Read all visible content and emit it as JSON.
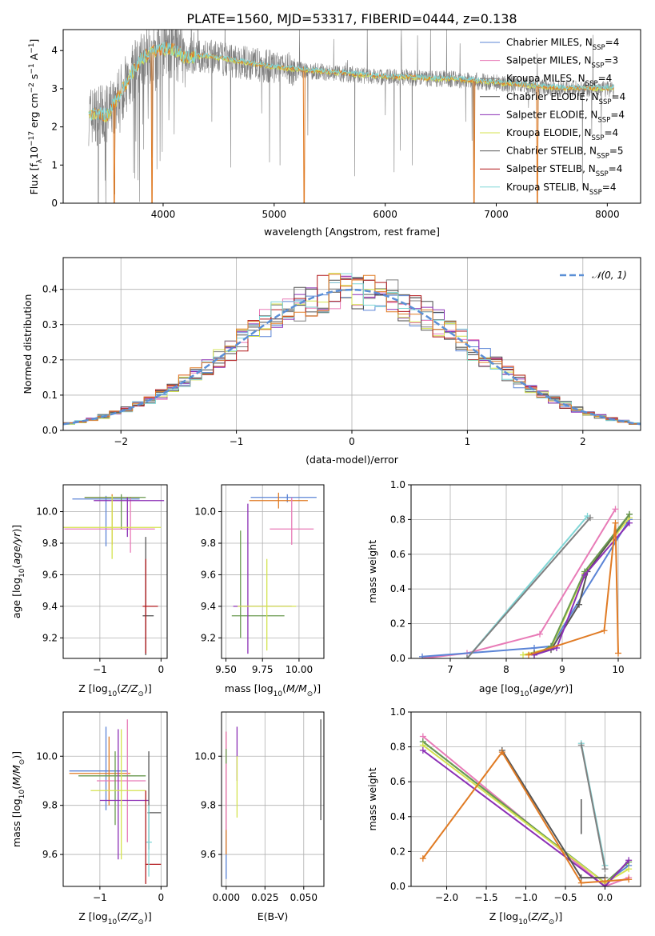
{
  "figure_title": "PLATE=1560, MJD=53317, FIBERID=0444, z=0.138",
  "colors": {
    "chabrier_miles": "#5b84d6",
    "salpeter_miles": "#e87bb7",
    "kroupa_miles": "#7f7f7f",
    "chabrier_elodie": "#4a4a4a",
    "salpeter_elodie": "#8b2fb5",
    "kroupa_elodie": "#d4e34f",
    "chabrier_stelib": "#555555",
    "salpeter_stelib": "#b2181b",
    "kroupa_stelib": "#7fd6d6",
    "orange": "#e07b24",
    "green": "#6a9a4f",
    "grid": "#b0b0b0"
  },
  "chart_data": [
    {
      "id": "spectrum",
      "type": "line",
      "title": "PLATE=1560, MJD=53317, FIBERID=0444, z=0.138",
      "xlabel": "wavelength [Angstrom, rest frame]",
      "ylabel": "Flux [f_λ 10^-17 erg cm^-2 s^-1 A^-1]",
      "xlim": [
        3100,
        8300
      ],
      "ylim": [
        0,
        4.55
      ],
      "xticks": [
        "4000",
        "5000",
        "6000",
        "7000",
        "8000"
      ],
      "yticks": [
        "0",
        "1",
        "2",
        "3",
        "4"
      ],
      "grid": false,
      "legend_position": "top-right",
      "legend": [
        "Chabrier MILES, N_SSP=4",
        "Salpeter MILES, N_SSP=3",
        "Kroupa MILES, N_SSP=4",
        "Chabrier ELODIE, N_SSP=4",
        "Salpeter ELODIE, N_SSP=4",
        "Kroupa ELODIE, N_SSP=4",
        "Chabrier STELIB, N_SSP=5",
        "Salpeter STELIB, N_SSP=4",
        "Kroupa STELIB, N_SSP=4"
      ],
      "model_continuum": {
        "x": [
          3300,
          3500,
          3700,
          3800,
          3900,
          4000,
          4100,
          4200,
          4400,
          4600,
          4800,
          5000,
          5200,
          5400,
          5600,
          5800,
          6000,
          6200,
          6400,
          6600,
          6800,
          7000,
          7200,
          7400,
          7600,
          7800,
          8000,
          8100
        ],
        "y": [
          2.3,
          2.3,
          3.3,
          3.75,
          3.95,
          4.05,
          4.0,
          3.8,
          3.85,
          3.75,
          3.65,
          3.55,
          3.5,
          3.45,
          3.4,
          3.35,
          3.3,
          3.3,
          3.25,
          3.25,
          3.2,
          3.15,
          3.1,
          3.05,
          3.0,
          3.0,
          3.0,
          3.0
        ]
      },
      "model_dropouts": [
        {
          "x": 3560,
          "y": 0
        },
        {
          "x": 3900,
          "y": 0
        },
        {
          "x": 5270,
          "y": 0
        },
        {
          "x": 6800,
          "y": 0
        },
        {
          "x": 7370,
          "y": 0
        }
      ]
    },
    {
      "id": "residuals",
      "type": "bar",
      "xlabel": "(data-model)/error",
      "ylabel": "Normed distribution",
      "xlim": [
        -2.5,
        2.5
      ],
      "ylim": [
        0,
        0.49
      ],
      "xticks": [
        "−2",
        "−1",
        "0",
        "1",
        "2"
      ],
      "yticks": [
        "0.0",
        "0.1",
        "0.2",
        "0.3",
        "0.4"
      ],
      "grid": true,
      "legend_position": "top-right",
      "legend": [
        "𝒩(0, 1)"
      ],
      "bin_width": 0.1,
      "bin_start": -2.5,
      "gaussian": {
        "mean": 0,
        "sigma": 1
      }
    },
    {
      "id": "age_vs_Z",
      "type": "scatter",
      "xlabel": "Z [log10(Z/Z⊙)]",
      "ylabel": "age [log10(age/yr)]",
      "xlim": [
        -1.6,
        0.1
      ],
      "ylim": [
        9.07,
        10.17
      ],
      "xticks": [
        "−1",
        "0"
      ],
      "yticks": [
        "9.2",
        "9.4",
        "9.6",
        "9.8",
        "10.0"
      ],
      "grid": true,
      "errorbars": [
        {
          "x": -0.9,
          "y": 10.08,
          "xerr": [
            0.55,
            0.55
          ],
          "yerr": [
            0.3,
            0.02
          ]
        },
        {
          "x": -0.8,
          "y": 10.09,
          "xerr": [
            0.45,
            0.45
          ],
          "yerr": [
            0.3,
            0.02
          ]
        },
        {
          "x": -0.5,
          "y": 9.89,
          "xerr": [
            1.08,
            0.4
          ],
          "yerr": [
            0.15,
            0.2
          ]
        },
        {
          "x": -0.65,
          "y": 10.09,
          "xerr": [
            0.6,
            0.4
          ],
          "yerr": [
            0.2,
            0.02
          ]
        },
        {
          "x": -0.55,
          "y": 10.07,
          "xerr": [
            0.55,
            0.6
          ],
          "yerr": [
            0.23,
            0.02
          ]
        },
        {
          "x": -0.8,
          "y": 9.9,
          "xerr": [
            0.8,
            0.8
          ],
          "yerr": [
            0.2,
            0.2
          ]
        },
        {
          "x": -0.25,
          "y": 9.34,
          "xerr": [
            0.05,
            0.13
          ],
          "yerr": [
            0.25,
            0.5
          ]
        },
        {
          "x": -0.25,
          "y": 9.4,
          "xerr": [
            0.05,
            0.2
          ],
          "yerr": [
            0.3,
            0.3
          ]
        }
      ]
    },
    {
      "id": "age_vs_mass",
      "type": "scatter",
      "xlabel": "mass [log10(M/M⊙)]",
      "ylabel": "",
      "xlim": [
        9.47,
        10.17
      ],
      "ylim": [
        9.07,
        10.17
      ],
      "xticks": [
        "9.50",
        "9.75",
        "10.00"
      ],
      "yticks": [
        "9.2",
        "9.4",
        "9.6",
        "9.8",
        "10.0"
      ],
      "grid": true,
      "errorbars": [
        {
          "x": 9.92,
          "y": 10.09,
          "xerr": [
            0.25,
            0.2
          ],
          "yerr": [
            0.03,
            0.02
          ]
        },
        {
          "x": 9.86,
          "y": 10.07,
          "xerr": [
            0.2,
            0.2
          ],
          "yerr": [
            0.05,
            0.05
          ]
        },
        {
          "x": 9.95,
          "y": 9.89,
          "xerr": [
            0.15,
            0.15
          ],
          "yerr": [
            0.1,
            0.2
          ]
        },
        {
          "x": 9.6,
          "y": 9.34,
          "xerr": [
            0.06,
            0.3
          ],
          "yerr": [
            0.14,
            0.54
          ]
        },
        {
          "x": 9.65,
          "y": 9.4,
          "xerr": [
            0.1,
            0.3
          ],
          "yerr": [
            0.3,
            0.65
          ]
        },
        {
          "x": 9.78,
          "y": 9.4,
          "xerr": [
            0.2,
            0.2
          ],
          "yerr": [
            0.28,
            0.3
          ]
        }
      ]
    },
    {
      "id": "weight_vs_age",
      "type": "line",
      "xlabel": "age [log10(age/yr)]",
      "ylabel": "mass weight",
      "xlim": [
        6.3,
        10.4
      ],
      "ylim": [
        0,
        1.0
      ],
      "xticks": [
        "7",
        "8",
        "9",
        "10"
      ],
      "yticks": [
        "0.0",
        "0.2",
        "0.4",
        "0.6",
        "0.8",
        "1.0"
      ],
      "grid": true,
      "series": [
        {
          "color_key": "salpeter_miles",
          "x": [
            6.5,
            7.3,
            8.6,
            9.95
          ],
          "y": [
            0.0,
            0.03,
            0.14,
            0.86
          ]
        },
        {
          "color_key": "chabrier_miles",
          "x": [
            6.5,
            8.5,
            8.8,
            10.2
          ],
          "y": [
            0.01,
            0.06,
            0.07,
            0.8
          ]
        },
        {
          "color_key": "kroupa_elodie",
          "x": [
            8.3,
            8.8,
            9.4,
            10.2
          ],
          "y": [
            0.02,
            0.06,
            0.49,
            0.81
          ]
        },
        {
          "color_key": "chabrier_stelib",
          "x": [
            8.5,
            8.8,
            9.3,
            9.45,
            10.2
          ],
          "y": [
            0.03,
            0.05,
            0.31,
            0.5,
            0.83
          ]
        },
        {
          "color_key": "green",
          "x": [
            8.5,
            8.8,
            9.4,
            10.2
          ],
          "y": [
            0.02,
            0.07,
            0.5,
            0.83
          ]
        },
        {
          "color_key": "salpeter_elodie",
          "x": [
            8.5,
            8.9,
            9.4,
            10.2
          ],
          "y": [
            0.02,
            0.06,
            0.48,
            0.78
          ]
        },
        {
          "color_key": "kroupa_stelib",
          "x": [
            7.3,
            9.45
          ],
          "y": [
            0.0,
            0.82
          ]
        },
        {
          "color_key": "kroupa_miles",
          "x": [
            7.3,
            9.5
          ],
          "y": [
            0.0,
            0.81
          ]
        },
        {
          "color_key": "orange",
          "x": [
            8.4,
            9.75,
            9.95,
            10.0
          ],
          "y": [
            0.02,
            0.16,
            0.78,
            0.03
          ]
        }
      ]
    },
    {
      "id": "mass_vs_Z",
      "type": "scatter",
      "xlabel": "Z [log10(Z/Z⊙)]",
      "ylabel": "mass [log10(M/M⊙)]",
      "xlim": [
        -1.6,
        0.1
      ],
      "ylim": [
        9.47,
        10.18
      ],
      "xticks": [
        "−1",
        "0"
      ],
      "yticks": [
        "9.6",
        "9.8",
        "10.0"
      ],
      "grid": true,
      "errorbars": [
        {
          "x": -0.9,
          "y": 9.94,
          "xerr": [
            0.6,
            0.35
          ],
          "yerr": [
            0.16,
            0.18
          ]
        },
        {
          "x": -0.85,
          "y": 9.93,
          "xerr": [
            0.65,
            0.35
          ],
          "yerr": [
            0.13,
            0.15
          ]
        },
        {
          "x": -0.55,
          "y": 9.9,
          "xerr": [
            0.5,
            0.3
          ],
          "yerr": [
            0.25,
            0.25
          ]
        },
        {
          "x": -0.75,
          "y": 9.92,
          "xerr": [
            0.6,
            0.5
          ],
          "yerr": [
            0.2,
            0.1
          ]
        },
        {
          "x": -0.7,
          "y": 9.82,
          "xerr": [
            0.3,
            0.5
          ],
          "yerr": [
            0.24,
            0.29
          ]
        },
        {
          "x": -0.65,
          "y": 9.86,
          "xerr": [
            0.5,
            0.4
          ],
          "yerr": [
            0.28,
            0.25
          ]
        },
        {
          "x": -0.2,
          "y": 9.77,
          "xerr": [
            0.02,
            0.2
          ],
          "yerr": [
            0.15,
            0.25
          ]
        },
        {
          "x": -0.25,
          "y": 9.56,
          "xerr": [
            0.01,
            0.25
          ],
          "yerr": [
            0.08,
            0.3
          ]
        },
        {
          "x": -0.2,
          "y": 9.65,
          "xerr": [
            0.04,
            0.05
          ],
          "yerr": [
            0.14,
            0.15
          ]
        }
      ]
    },
    {
      "id": "mass_vs_ebv",
      "type": "scatter",
      "xlabel": "E(B-V)",
      "ylabel": "",
      "xlim": [
        -0.003,
        0.063
      ],
      "ylim": [
        9.47,
        10.18
      ],
      "xticks": [
        "0.000",
        "0.025",
        "0.050"
      ],
      "yticks": [
        "9.6",
        "9.8",
        "10.0"
      ],
      "grid": true,
      "errorbars": [
        {
          "x": 0.0,
          "y": 9.9,
          "xerr": [
            0,
            0
          ],
          "yerr": [
            0.4,
            0.2
          ]
        },
        {
          "x": 0.0,
          "y": 10.0,
          "xerr": [
            0,
            0
          ],
          "yerr": [
            0.4,
            0.1
          ]
        },
        {
          "x": 0.0,
          "y": 9.9,
          "xerr": [
            0,
            0
          ],
          "yerr": [
            0.2,
            0.2
          ]
        },
        {
          "x": 0.0,
          "y": 10.0,
          "xerr": [
            0,
            0
          ],
          "yerr": [
            0.03,
            0.03
          ]
        },
        {
          "x": 0.007,
          "y": 10.0,
          "xerr": [
            0,
            0
          ],
          "yerr": [
            0.1,
            0.12
          ]
        },
        {
          "x": 0.007,
          "y": 9.9,
          "xerr": [
            0,
            0
          ],
          "yerr": [
            0.15,
            0.1
          ]
        },
        {
          "x": 0.061,
          "y": 9.95,
          "xerr": [
            0,
            0
          ],
          "yerr": [
            0.21,
            0.2
          ]
        }
      ]
    },
    {
      "id": "weight_vs_Z",
      "type": "line",
      "xlabel": "Z [log10(Z/Z⊙)]",
      "ylabel": "mass weight",
      "xlim": [
        -2.45,
        0.45
      ],
      "ylim": [
        0,
        1.0
      ],
      "xticks": [
        "−2.0",
        "−1.5",
        "−1.0",
        "−0.5",
        "0.0"
      ],
      "yticks": [
        "0.0",
        "0.2",
        "0.4",
        "0.6",
        "0.8",
        "1.0"
      ],
      "grid": true,
      "series": [
        {
          "color_key": "salpeter_miles",
          "x": [
            -2.3,
            0.0,
            0.3
          ],
          "y": [
            0.86,
            0.0,
            0.05
          ]
        },
        {
          "color_key": "chabrier_miles",
          "x": [
            -2.3,
            0.0,
            0.3
          ],
          "y": [
            0.83,
            0.02,
            0.12
          ]
        },
        {
          "color_key": "green",
          "x": [
            -2.3,
            0.0,
            0.3
          ],
          "y": [
            0.83,
            0.02,
            0.14
          ]
        },
        {
          "color_key": "kroupa_elodie",
          "x": [
            -2.3,
            0.0,
            0.3
          ],
          "y": [
            0.81,
            0.02,
            0.1
          ]
        },
        {
          "color_key": "salpeter_elodie",
          "x": [
            -2.3,
            0.0,
            0.3
          ],
          "y": [
            0.78,
            0.0,
            0.15
          ]
        },
        {
          "color_key": "chabrier_stelib",
          "x": [
            -1.3,
            -0.3,
            0.0
          ],
          "y": [
            0.78,
            0.05,
            0.05
          ]
        },
        {
          "color_key": "kroupa_stelib",
          "x": [
            -0.3,
            0.0
          ],
          "y": [
            0.82,
            0.12
          ]
        },
        {
          "color_key": "kroupa_miles",
          "x": [
            -0.3,
            0.0
          ],
          "y": [
            0.81,
            0.1
          ]
        },
        {
          "color_key": "orange",
          "x": [
            -2.3,
            -1.3,
            -0.3,
            0.0,
            0.3
          ],
          "y": [
            0.16,
            0.77,
            0.02,
            0.03,
            0.04
          ]
        }
      ],
      "errorbars": [
        {
          "color_key": "chabrier_stelib",
          "x": -0.3,
          "y": 0.4,
          "yerr": [
            0.1,
            0.1
          ]
        }
      ]
    }
  ]
}
